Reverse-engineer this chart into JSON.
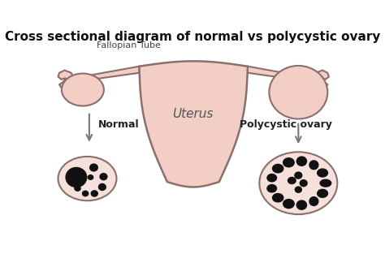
{
  "title": "Cross sectional diagram of normal vs polycystic ovary",
  "title_fontsize": 11,
  "background_color": "#ffffff",
  "body_fill": "#f2cec5",
  "body_edge": "#8b6f6f",
  "label_fallopian": "Fallopian Tube",
  "label_uterus": "Uterus",
  "label_normal": "Normal",
  "label_polycystic": "Polycystic ovary",
  "cyst_color": "#111111",
  "section_fill": "#f5e0db",
  "edge_color": "#8b6f6f"
}
